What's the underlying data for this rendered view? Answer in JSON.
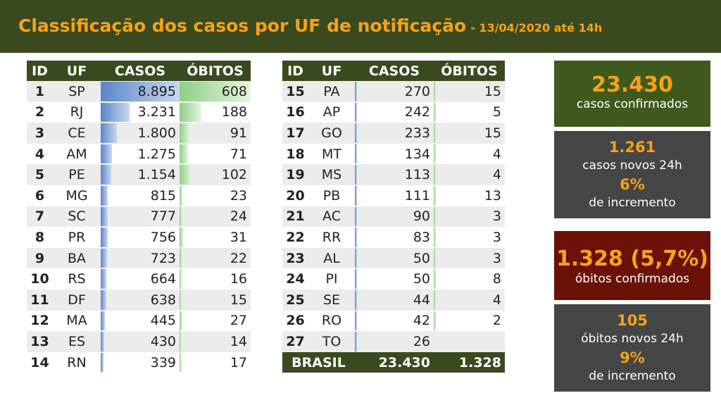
{
  "header": {
    "title": "Classificação dos casos por UF de notificação",
    "subtitle": "- 13/04/2020 até 14h"
  },
  "columns": [
    "ID",
    "UF",
    "CASOS",
    "ÓBITOS"
  ],
  "left_rows": [
    {
      "id": "1",
      "uf": "SP",
      "casos": "8.895",
      "obitos": "608"
    },
    {
      "id": "2",
      "uf": "RJ",
      "casos": "3.231",
      "obitos": "188"
    },
    {
      "id": "3",
      "uf": "CE",
      "casos": "1.800",
      "obitos": "91"
    },
    {
      "id": "4",
      "uf": "AM",
      "casos": "1.275",
      "obitos": "71"
    },
    {
      "id": "5",
      "uf": "PE",
      "casos": "1.154",
      "obitos": "102"
    },
    {
      "id": "6",
      "uf": "MG",
      "casos": "815",
      "obitos": "23"
    },
    {
      "id": "7",
      "uf": "SC",
      "casos": "777",
      "obitos": "24"
    },
    {
      "id": "8",
      "uf": "PR",
      "casos": "756",
      "obitos": "31"
    },
    {
      "id": "9",
      "uf": "BA",
      "casos": "723",
      "obitos": "22"
    },
    {
      "id": "10",
      "uf": "RS",
      "casos": "664",
      "obitos": "16"
    },
    {
      "id": "11",
      "uf": "DF",
      "casos": "638",
      "obitos": "15"
    },
    {
      "id": "12",
      "uf": "MA",
      "casos": "445",
      "obitos": "27"
    },
    {
      "id": "13",
      "uf": "ES",
      "casos": "430",
      "obitos": "14"
    },
    {
      "id": "14",
      "uf": "RN",
      "casos": "339",
      "obitos": "17"
    }
  ],
  "right_rows": [
    {
      "id": "15",
      "uf": "PA",
      "casos": "270",
      "obitos": "15"
    },
    {
      "id": "16",
      "uf": "AP",
      "casos": "242",
      "obitos": "5"
    },
    {
      "id": "17",
      "uf": "GO",
      "casos": "233",
      "obitos": "15"
    },
    {
      "id": "18",
      "uf": "MT",
      "casos": "134",
      "obitos": "4"
    },
    {
      "id": "19",
      "uf": "MS",
      "casos": "113",
      "obitos": "4"
    },
    {
      "id": "20",
      "uf": "PB",
      "casos": "111",
      "obitos": "13"
    },
    {
      "id": "21",
      "uf": "AC",
      "casos": "90",
      "obitos": "3"
    },
    {
      "id": "22",
      "uf": "RR",
      "casos": "83",
      "obitos": "3"
    },
    {
      "id": "23",
      "uf": "AL",
      "casos": "50",
      "obitos": "3"
    },
    {
      "id": "24",
      "uf": "PI",
      "casos": "50",
      "obitos": "8"
    },
    {
      "id": "25",
      "uf": "SE",
      "casos": "44",
      "obitos": "4"
    },
    {
      "id": "26",
      "uf": "RO",
      "casos": "42",
      "obitos": "2"
    },
    {
      "id": "27",
      "uf": "TO",
      "casos": "26",
      "obitos": ""
    }
  ],
  "total": {
    "label": "BRASIL",
    "casos": "23.430",
    "obitos": "1.328"
  },
  "summary": {
    "confirmed": {
      "value": "23.430",
      "label": "casos confirmados"
    },
    "new_cases": {
      "value": "1.261",
      "label": "casos novos 24h",
      "pct": "6%",
      "pct_label": "de incremento"
    },
    "deaths": {
      "value": "1.328 (5,7%)",
      "label": "óbitos confirmados"
    },
    "new_deaths": {
      "value": "105",
      "label": "óbitos novos 24h",
      "pct": "9%",
      "pct_label": "de incremento"
    }
  },
  "colors": {
    "header_bg": "#3a4a1f",
    "accent": "#f7a21b",
    "casos_bar": "#5b86c9",
    "obitos_bar": "#8fcf85",
    "deaths_box": "#6a1208",
    "gray_box": "#454545"
  }
}
